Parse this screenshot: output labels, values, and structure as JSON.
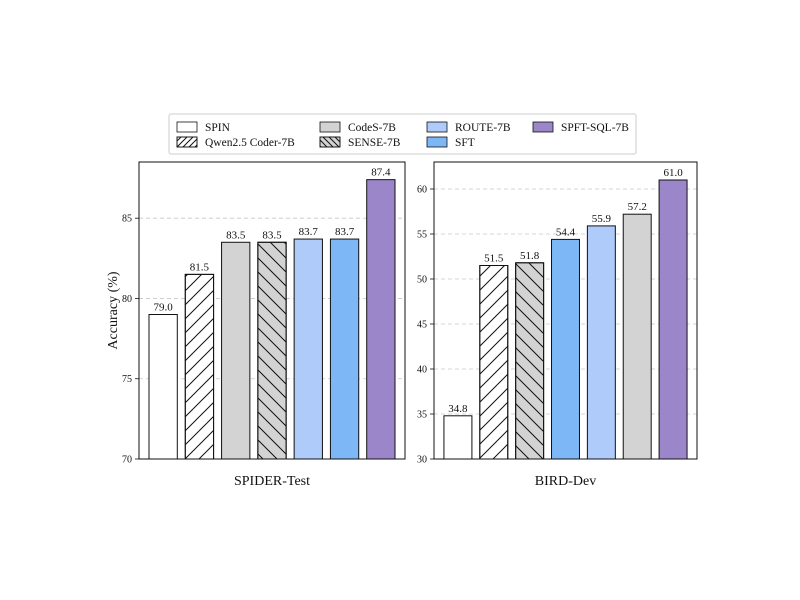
{
  "legend": [
    {
      "key": "spin",
      "label": "SPIN",
      "fill": "#ffffff",
      "hatch": "none"
    },
    {
      "key": "qwen",
      "label": "Qwen2.5 Coder-7B",
      "fill": "#ffffff",
      "hatch": "fwd"
    },
    {
      "key": "codes",
      "label": "CodeS-7B",
      "fill": "#d3d3d3",
      "hatch": "none"
    },
    {
      "key": "sense",
      "label": "SENSE-7B",
      "fill": "#d3d3d3",
      "hatch": "back"
    },
    {
      "key": "route",
      "label": "ROUTE-7B",
      "fill": "#aecbfa",
      "hatch": "none"
    },
    {
      "key": "sft",
      "label": "SFT",
      "fill": "#7db7f5",
      "hatch": "none"
    },
    {
      "key": "spft",
      "label": "SPFT-SQL-7B",
      "fill": "#9b86c9",
      "hatch": "none"
    }
  ],
  "chart_data": [
    {
      "type": "bar",
      "xlabel": "SPIDER-Test",
      "ylabel": "Accuracy (%)",
      "ylim": [
        70,
        88.5
      ],
      "yticks": [
        70,
        75,
        80,
        85
      ],
      "grid": "horizontal-dashed",
      "bars": [
        {
          "series": "spin",
          "value": 79.0,
          "label": "79.0"
        },
        {
          "series": "qwen",
          "value": 81.5,
          "label": "81.5"
        },
        {
          "series": "codes",
          "value": 83.5,
          "label": "83.5"
        },
        {
          "series": "sense",
          "value": 83.5,
          "label": "83.5"
        },
        {
          "series": "route",
          "value": 83.7,
          "label": "83.7"
        },
        {
          "series": "sft",
          "value": 83.7,
          "label": "83.7"
        },
        {
          "series": "spft",
          "value": 87.4,
          "label": "87.4"
        }
      ]
    },
    {
      "type": "bar",
      "xlabel": "BIRD-Dev",
      "ylabel": "",
      "ylim": [
        30,
        63
      ],
      "yticks": [
        30,
        35,
        40,
        45,
        50,
        55,
        60
      ],
      "grid": "horizontal-dashed",
      "bars": [
        {
          "series": "spin",
          "value": 34.8,
          "label": "34.8"
        },
        {
          "series": "qwen",
          "value": 51.5,
          "label": "51.5"
        },
        {
          "series": "sense",
          "value": 51.8,
          "label": "51.8"
        },
        {
          "series": "sft",
          "value": 54.4,
          "label": "54.4"
        },
        {
          "series": "route",
          "value": 55.9,
          "label": "55.9"
        },
        {
          "series": "codes",
          "value": 57.2,
          "label": "57.2"
        },
        {
          "series": "spft",
          "value": 61.0,
          "label": "61.0"
        }
      ]
    }
  ]
}
